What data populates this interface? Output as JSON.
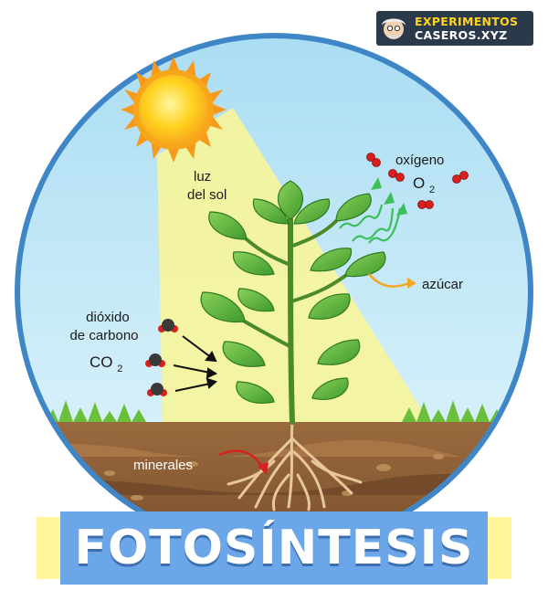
{
  "logo": {
    "line1": "EXPERIMENTOS",
    "line2": "CASEROS.XYZ"
  },
  "labels": {
    "sunlight_line1": "luz",
    "sunlight_line2": "del sol",
    "oxygen": "oxígeno",
    "o2_symbol": "O",
    "o2_subscript": "2",
    "sugar": "azúcar",
    "co2_line1": "dióxido",
    "co2_line2": "de carbono",
    "co2_symbol": "CO",
    "co2_subscript": "2",
    "minerals": "minerales"
  },
  "banner": {
    "title": "FOTOSÍNTESIS"
  },
  "colors": {
    "sky": "#bfe6f6",
    "ring": "#3f86c7",
    "sun": "#ffd21f",
    "light_beam": "#f7f59a",
    "leaf": "#5db33a",
    "soil": "#8a5a33",
    "banner": "#6aa6e8",
    "banner_tabs": "#fff79a"
  }
}
